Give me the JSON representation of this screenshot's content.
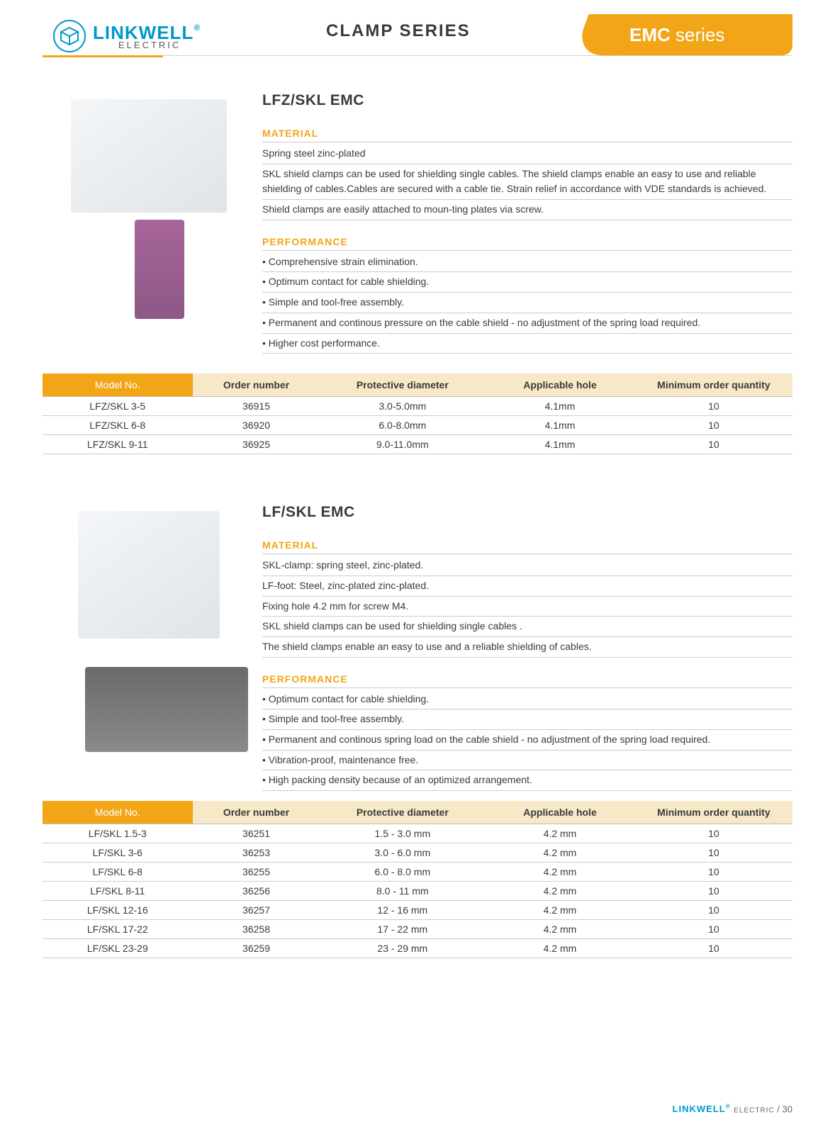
{
  "header": {
    "brand_main": "LINKWELL",
    "brand_reg": "®",
    "brand_sub": "ELECTRIC",
    "series_label": "CLAMP SERIES",
    "tab_bold": "EMC",
    "tab_light": " series"
  },
  "products": [
    {
      "title": "LFZ/SKL EMC",
      "material_label": "MATERIAL",
      "material_lines": [
        "Spring steel zinc-plated",
        "SKL shield clamps can be used for shielding single cables. The shield clamps enable an easy to use and reliable shielding of cables.Cables are secured with a cable tie. Strain relief in accordance with VDE standards is achieved.",
        "Shield clamps are easily attached to moun-ting plates via screw."
      ],
      "performance_label": "PERFORMANCE",
      "performance_lines": [
        "• Comprehensive strain elimination.",
        "• Optimum contact for cable shielding.",
        "• Simple and tool-free assembly.",
        "• Permanent and continous pressure on the cable shield - no adjustment of the spring load required.",
        "• Higher cost performance."
      ]
    },
    {
      "title": "LF/SKL EMC",
      "material_label": "MATERIAL",
      "material_lines": [
        "SKL-clamp: spring steel, zinc-plated.",
        "LF-foot: Steel, zinc-plated zinc-plated.",
        "Fixing hole 4.2 mm for screw M4.",
        "SKL shield clamps can be used for shielding single cables .",
        "The shield clamps enable an easy to use and a reliable shielding of cables."
      ],
      "performance_label": "PERFORMANCE",
      "performance_lines": [
        "• Optimum contact for cable shielding.",
        "• Simple and tool-free assembly.",
        "• Permanent and continous spring load on the cable shield - no adjustment of the spring load required.",
        "• Vibration-proof, maintenance free.",
        "• High packing density because of an optimized arrangement."
      ]
    }
  ],
  "table_headers": {
    "model": "Model No.",
    "order": "Order number",
    "dia": "Protective diameter",
    "hole": "Applicable hole",
    "moq": "Minimum order quantity"
  },
  "tables": [
    {
      "rows": [
        {
          "model": "LFZ/SKL 3-5",
          "order": "36915",
          "dia": "3.0-5.0mm",
          "hole": "4.1mm",
          "moq": "10"
        },
        {
          "model": "LFZ/SKL 6-8",
          "order": "36920",
          "dia": "6.0-8.0mm",
          "hole": "4.1mm",
          "moq": "10"
        },
        {
          "model": "LFZ/SKL 9-11",
          "order": "36925",
          "dia": "9.0-11.0mm",
          "hole": "4.1mm",
          "moq": "10"
        }
      ]
    },
    {
      "rows": [
        {
          "model": "LF/SKL 1.5-3",
          "order": "36251",
          "dia": "1.5 - 3.0 mm",
          "hole": "4.2 mm",
          "moq": "10"
        },
        {
          "model": "LF/SKL 3-6",
          "order": "36253",
          "dia": "3.0 - 6.0 mm",
          "hole": "4.2 mm",
          "moq": "10"
        },
        {
          "model": "LF/SKL 6-8",
          "order": "36255",
          "dia": "6.0 - 8.0 mm",
          "hole": "4.2 mm",
          "moq": "10"
        },
        {
          "model": "LF/SKL 8-11",
          "order": "36256",
          "dia": "8.0 - 11 mm",
          "hole": "4.2 mm",
          "moq": "10"
        },
        {
          "model": "LF/SKL 12-16",
          "order": "36257",
          "dia": "12 - 16 mm",
          "hole": "4.2 mm",
          "moq": "10"
        },
        {
          "model": "LF/SKL 17-22",
          "order": "36258",
          "dia": "17 - 22 mm",
          "hole": "4.2 mm",
          "moq": "10"
        },
        {
          "model": "LF/SKL 23-29",
          "order": "36259",
          "dia": "23 - 29 mm",
          "hole": "4.2 mm",
          "moq": "10"
        }
      ]
    }
  ],
  "footer": {
    "brand": "LINKWELL",
    "reg": "®",
    "sub": "ELECTRIC",
    "sep": " / ",
    "page": "30"
  },
  "colors": {
    "accent": "#f2a516",
    "brand_blue": "#0099cc",
    "header_bg": "#f7e9c7",
    "rule": "#cccccc",
    "text": "#3a3a3a"
  }
}
